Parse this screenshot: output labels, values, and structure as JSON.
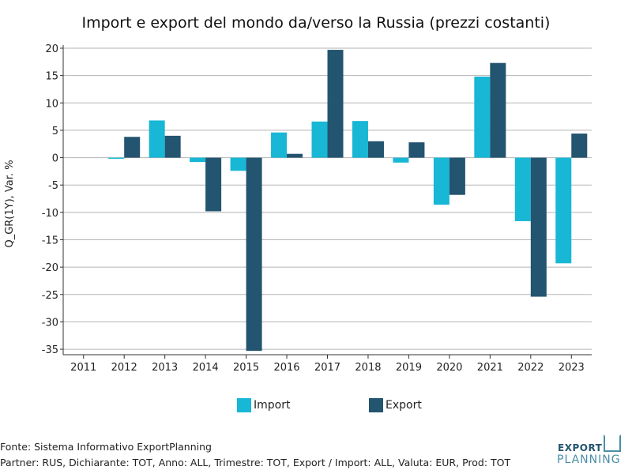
{
  "chart_data": {
    "type": "bar",
    "title": "Import e export del mondo da/verso la Russia (prezzi costanti)",
    "xlabel": "",
    "ylabel": "Q_GR(1Y), Var. %",
    "categories": [
      "2011",
      "2012",
      "2013",
      "2014",
      "2015",
      "2016",
      "2017",
      "2018",
      "2019",
      "2020",
      "2021",
      "2022",
      "2023"
    ],
    "ylim": [
      -36,
      20
    ],
    "yticks": [
      20,
      15,
      10,
      5,
      0,
      -5,
      -10,
      -15,
      -20,
      -25,
      -30,
      -35
    ],
    "grid": true,
    "legend_position": "bottom",
    "series": [
      {
        "name": "Import",
        "color": "#17b7d5",
        "values": [
          null,
          -0.2,
          6.8,
          -0.8,
          -2.4,
          4.6,
          6.6,
          6.7,
          -0.9,
          -8.6,
          14.8,
          -11.6,
          -19.3
        ]
      },
      {
        "name": "Export",
        "color": "#235470",
        "values": [
          null,
          3.8,
          4.0,
          -9.8,
          -35.3,
          0.7,
          19.7,
          3.0,
          2.8,
          -6.8,
          17.3,
          -25.4,
          4.4
        ]
      }
    ]
  },
  "footer": {
    "source": "Fonte: Sistema Informativo ExportPlanning",
    "details": "Partner: RUS, Dichiarante: TOT, Anno: ALL, Trimestre: TOT, Export / Import: ALL, Valuta: EUR, Prod: TOT"
  },
  "logo": {
    "line1": "EXPORT",
    "line2": "PLANNING",
    "color": "#4a8ea6"
  }
}
